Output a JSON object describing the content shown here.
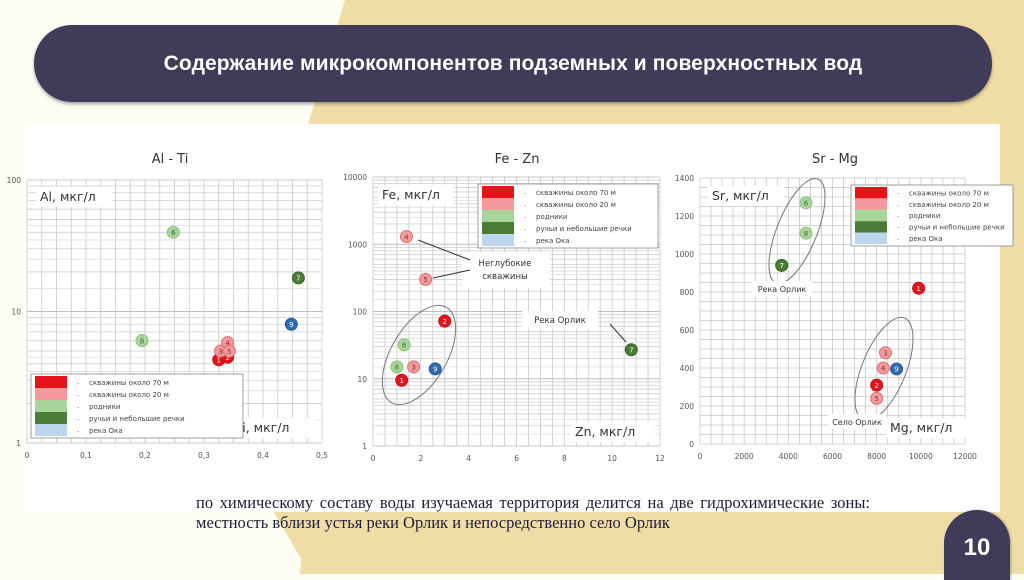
{
  "header": {
    "title": "Содержание микрокомпонентов подземных и поверхностных вод"
  },
  "caption": {
    "text": "по химическому составу воды изучаемая территория делится на две гидрохимические зоны: местность вблизи устья реки Орлик и непосредственно село Орлик"
  },
  "page_number": "10",
  "colors": {
    "title_bar": "#403b59",
    "background": "#fdfdf3",
    "accent_wedge": "#f0dda5",
    "wells_70m": "#e8121a",
    "wells_20m": "#f49a9c",
    "springs": "#a8d59a",
    "streams": "#4a7c35",
    "oka_river": "#bcd6ef",
    "oka_point": "#2e6bb0"
  },
  "legend": [
    {
      "key": "wells_70m",
      "label": "скважины около 70 м",
      "color": "#e8121a"
    },
    {
      "key": "wells_20m",
      "label": "скважины около 20 м",
      "color": "#f49a9c"
    },
    {
      "key": "springs",
      "label": "родники",
      "color": "#a8d59a"
    },
    {
      "key": "streams",
      "label": "ручьи и небольшие речки",
      "color": "#4a7c35"
    },
    {
      "key": "oka_river",
      "label": "река Ока",
      "color": "#bcd6ef"
    }
  ],
  "chart_data": [
    {
      "type": "scatter",
      "title": "Al - Ti",
      "xlabel": "Ti, мкг/л",
      "ylabel": "Al, мкг/л",
      "xscale": "linear",
      "yscale": "log",
      "xlim": [
        0,
        0.5
      ],
      "ylim": [
        1,
        100
      ],
      "xticks": [
        "0",
        "0,1",
        "0,2",
        "0,3",
        "0,4",
        "0,5"
      ],
      "yticks": [
        "1",
        "10",
        "100"
      ],
      "grid": true,
      "legend_position": "lower-left",
      "points": [
        {
          "id": "1",
          "group": "wells_70m",
          "x": 0.325,
          "y": 4.3
        },
        {
          "id": "2",
          "group": "wells_70m",
          "x": 0.34,
          "y": 4.5
        },
        {
          "id": "3",
          "group": "wells_20m",
          "x": 0.328,
          "y": 5.0
        },
        {
          "id": "4",
          "group": "wells_20m",
          "x": 0.34,
          "y": 5.8
        },
        {
          "id": "5",
          "group": "wells_20m",
          "x": 0.343,
          "y": 5.0
        },
        {
          "id": "6",
          "group": "springs",
          "x": 0.248,
          "y": 40
        },
        {
          "id": "7",
          "group": "streams",
          "x": 0.46,
          "y": 18
        },
        {
          "id": "8",
          "group": "springs",
          "x": 0.195,
          "y": 6
        },
        {
          "id": "9",
          "group": "oka",
          "x": 0.448,
          "y": 8
        }
      ],
      "annotations": []
    },
    {
      "type": "scatter",
      "title": "Fe - Zn",
      "xlabel": "Zn, мкг/л",
      "ylabel": "Fe, мкг/л",
      "xscale": "linear",
      "yscale": "log",
      "xlim": [
        0,
        12
      ],
      "ylim": [
        1,
        10000
      ],
      "xticks": [
        "0",
        "2",
        "4",
        "6",
        "8",
        "10",
        "12"
      ],
      "yticks": [
        "1",
        "10",
        "100",
        "1000",
        "10000"
      ],
      "grid": true,
      "legend_position": "upper-right",
      "points": [
        {
          "id": "1",
          "group": "wells_70m",
          "x": 1.2,
          "y": 9.5
        },
        {
          "id": "2",
          "group": "wells_70m",
          "x": 3.0,
          "y": 72
        },
        {
          "id": "3",
          "group": "wells_20m",
          "x": 1.7,
          "y": 15
        },
        {
          "id": "4",
          "group": "wells_20m",
          "x": 1.4,
          "y": 1300
        },
        {
          "id": "5",
          "group": "wells_20m",
          "x": 2.2,
          "y": 300
        },
        {
          "id": "6",
          "group": "springs",
          "x": 1.3,
          "y": 32
        },
        {
          "id": "7",
          "group": "streams",
          "x": 10.8,
          "y": 27
        },
        {
          "id": "8",
          "group": "springs",
          "x": 1.0,
          "y": 15
        },
        {
          "id": "9",
          "group": "oka",
          "x": 2.6,
          "y": 14
        }
      ],
      "annotations": [
        {
          "text_lines": [
            "Неглубокие",
            "скважины"
          ],
          "points_to": [
            "4",
            "5"
          ]
        },
        {
          "text_lines": [
            "Река Орлик"
          ],
          "points_to": [
            "7"
          ]
        }
      ]
    },
    {
      "type": "scatter",
      "title": "Sr - Mg",
      "xlabel": "Mg, мкг/л",
      "ylabel": "Sr, мкг/л",
      "xscale": "linear",
      "yscale": "linear",
      "xlim": [
        0,
        12000
      ],
      "ylim": [
        0,
        1400
      ],
      "xticks": [
        "0",
        "2000",
        "4000",
        "6000",
        "8000",
        "10000",
        "12000"
      ],
      "yticks": [
        "0",
        "200",
        "400",
        "600",
        "800",
        "1000",
        "1200",
        "1400"
      ],
      "grid": true,
      "legend_position": "upper-right",
      "points": [
        {
          "id": "1",
          "group": "wells_70m",
          "x": 9900,
          "y": 820
        },
        {
          "id": "2",
          "group": "wells_70m",
          "x": 8000,
          "y": 310
        },
        {
          "id": "3",
          "group": "wells_20m",
          "x": 8400,
          "y": 480
        },
        {
          "id": "4",
          "group": "wells_20m",
          "x": 8300,
          "y": 400
        },
        {
          "id": "5",
          "group": "wells_20m",
          "x": 8000,
          "y": 240
        },
        {
          "id": "6",
          "group": "springs",
          "x": 4800,
          "y": 1270
        },
        {
          "id": "7",
          "group": "streams",
          "x": 3700,
          "y": 940
        },
        {
          "id": "8",
          "group": "springs",
          "x": 4800,
          "y": 1110
        },
        {
          "id": "9",
          "group": "oka",
          "x": 8900,
          "y": 395
        }
      ],
      "annotations": [
        {
          "text_lines": [
            "Река Орлик"
          ],
          "encloses": [
            "6",
            "7",
            "8"
          ]
        },
        {
          "text_lines": [
            "Село Орлик"
          ],
          "encloses": [
            "2",
            "3",
            "4",
            "5",
            "9"
          ]
        }
      ]
    }
  ]
}
